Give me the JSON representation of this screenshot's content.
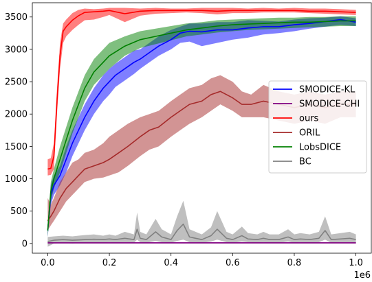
{
  "chart_data": {
    "type": "line",
    "title": "",
    "xlabel": "",
    "ylabel": "",
    "x_multiplier_label": "1e6",
    "xlim": [
      -0.05,
      1.05
    ],
    "ylim": [
      -150,
      3720
    ],
    "xticks": [
      0.0,
      0.2,
      0.4,
      0.6,
      0.8,
      1.0
    ],
    "xtick_labels": [
      "0.0",
      "0.2",
      "0.4",
      "0.6",
      "0.8",
      "1.0"
    ],
    "yticks": [
      0,
      500,
      1000,
      1500,
      2000,
      2500,
      3000,
      3500
    ],
    "ytick_labels": [
      "0",
      "500",
      "1000",
      "1500",
      "2000",
      "2500",
      "3000",
      "3500"
    ],
    "grid": false,
    "legend_position": "center-right",
    "series": [
      {
        "name": "SMODICE-KL",
        "color": "#0000ff",
        "x": [
          0.0,
          0.01,
          0.02,
          0.04,
          0.06,
          0.08,
          0.1,
          0.12,
          0.15,
          0.18,
          0.2,
          0.22,
          0.25,
          0.28,
          0.3,
          0.33,
          0.36,
          0.4,
          0.43,
          0.46,
          0.5,
          0.55,
          0.6,
          0.65,
          0.7,
          0.75,
          0.8,
          0.85,
          0.9,
          0.95,
          1.0
        ],
        "y": [
          200,
          750,
          900,
          1050,
          1300,
          1550,
          1750,
          1950,
          2200,
          2400,
          2500,
          2600,
          2700,
          2800,
          2850,
          2950,
          3050,
          3150,
          3250,
          3280,
          3270,
          3300,
          3300,
          3330,
          3350,
          3350,
          3380,
          3400,
          3430,
          3460,
          3420
        ],
        "lower": [
          100,
          600,
          750,
          900,
          1100,
          1350,
          1550,
          1750,
          2000,
          2200,
          2300,
          2420,
          2520,
          2620,
          2700,
          2800,
          2900,
          3000,
          3100,
          3120,
          3050,
          3100,
          3150,
          3180,
          3230,
          3250,
          3280,
          3320,
          3350,
          3380,
          3360
        ],
        "upper": [
          300,
          900,
          1050,
          1200,
          1500,
          1750,
          1950,
          2150,
          2400,
          2600,
          2700,
          2780,
          2880,
          2980,
          3000,
          3100,
          3200,
          3300,
          3350,
          3400,
          3400,
          3420,
          3420,
          3450,
          3440,
          3430,
          3460,
          3480,
          3490,
          3510,
          3480
        ]
      },
      {
        "name": "SMODICE-CHI",
        "color": "#800080",
        "x": [
          0.0,
          0.2,
          0.4,
          0.6,
          0.8,
          1.0
        ],
        "y": [
          10,
          10,
          10,
          10,
          10,
          10
        ],
        "lower": [
          0,
          0,
          0,
          0,
          0,
          0
        ],
        "upper": [
          20,
          20,
          20,
          20,
          20,
          20
        ]
      },
      {
        "name": "ours",
        "color": "#ff0000",
        "x": [
          0.0,
          0.01,
          0.02,
          0.03,
          0.04,
          0.05,
          0.06,
          0.08,
          0.1,
          0.12,
          0.15,
          0.18,
          0.2,
          0.25,
          0.3,
          0.35,
          0.4,
          0.45,
          0.5,
          0.55,
          0.6,
          0.65,
          0.7,
          0.75,
          0.8,
          0.85,
          0.9,
          0.95,
          1.0
        ],
        "y": [
          1150,
          1160,
          1350,
          2200,
          2900,
          3280,
          3350,
          3450,
          3520,
          3570,
          3580,
          3590,
          3600,
          3550,
          3590,
          3600,
          3600,
          3600,
          3600,
          3590,
          3600,
          3600,
          3600,
          3600,
          3600,
          3590,
          3590,
          3580,
          3570
        ],
        "lower": [
          1050,
          1060,
          1150,
          2000,
          2700,
          3100,
          3200,
          3300,
          3380,
          3450,
          3460,
          3500,
          3530,
          3420,
          3520,
          3550,
          3560,
          3570,
          3560,
          3540,
          3560,
          3560,
          3570,
          3570,
          3570,
          3560,
          3550,
          3540,
          3530
        ],
        "upper": [
          1300,
          1320,
          1550,
          2400,
          3100,
          3400,
          3460,
          3560,
          3610,
          3630,
          3620,
          3630,
          3640,
          3640,
          3630,
          3640,
          3630,
          3630,
          3640,
          3640,
          3640,
          3630,
          3640,
          3630,
          3640,
          3630,
          3630,
          3620,
          3610
        ]
      },
      {
        "name": "ORIL",
        "color": "#a52a2a",
        "x": [
          0.0,
          0.01,
          0.02,
          0.04,
          0.06,
          0.08,
          0.1,
          0.12,
          0.15,
          0.18,
          0.2,
          0.23,
          0.26,
          0.3,
          0.33,
          0.36,
          0.4,
          0.43,
          0.46,
          0.5,
          0.53,
          0.56,
          0.6,
          0.63,
          0.66,
          0.7,
          0.75,
          0.8,
          0.85,
          0.9,
          0.95,
          1.0
        ],
        "y": [
          350,
          420,
          500,
          700,
          850,
          950,
          1050,
          1150,
          1200,
          1250,
          1300,
          1400,
          1500,
          1650,
          1750,
          1800,
          1950,
          2050,
          2150,
          2200,
          2300,
          2350,
          2250,
          2150,
          2150,
          2200,
          2150,
          2100,
          2150,
          2100,
          2150,
          2150
        ],
        "lower": [
          200,
          280,
          350,
          500,
          650,
          750,
          850,
          950,
          1000,
          1020,
          1050,
          1100,
          1200,
          1350,
          1450,
          1500,
          1650,
          1750,
          1850,
          1950,
          2050,
          2150,
          2050,
          1950,
          1950,
          1950,
          1900,
          1850,
          1900,
          1850,
          1950,
          1950
        ],
        "upper": [
          700,
          600,
          700,
          950,
          1100,
          1250,
          1300,
          1400,
          1450,
          1550,
          1650,
          1750,
          1850,
          1950,
          2000,
          2050,
          2200,
          2300,
          2400,
          2450,
          2550,
          2600,
          2500,
          2350,
          2300,
          2450,
          2350,
          2300,
          2350,
          2300,
          2350,
          2350
        ]
      },
      {
        "name": "LobsDICE",
        "color": "#008000",
        "x": [
          0.0,
          0.01,
          0.02,
          0.04,
          0.06,
          0.08,
          0.1,
          0.12,
          0.15,
          0.18,
          0.2,
          0.25,
          0.3,
          0.35,
          0.4,
          0.45,
          0.5,
          0.55,
          0.6,
          0.65,
          0.7,
          0.75,
          0.8,
          0.85,
          0.9,
          0.95,
          1.0
        ],
        "y": [
          200,
          800,
          1000,
          1300,
          1600,
          1900,
          2150,
          2400,
          2650,
          2800,
          2900,
          3050,
          3150,
          3200,
          3250,
          3300,
          3330,
          3360,
          3380,
          3390,
          3400,
          3410,
          3420,
          3420,
          3430,
          3440,
          3440
        ],
        "lower": [
          100,
          650,
          850,
          1100,
          1400,
          1700,
          1950,
          2200,
          2450,
          2600,
          2700,
          2900,
          3020,
          3080,
          3140,
          3200,
          3230,
          3260,
          3280,
          3300,
          3310,
          3320,
          3330,
          3340,
          3350,
          3360,
          3360
        ],
        "upper": [
          300,
          950,
          1150,
          1500,
          1800,
          2100,
          2350,
          2600,
          2850,
          3000,
          3100,
          3200,
          3280,
          3320,
          3360,
          3400,
          3420,
          3450,
          3460,
          3470,
          3480,
          3490,
          3490,
          3500,
          3500,
          3510,
          3510
        ]
      },
      {
        "name": "BC",
        "color": "#808080",
        "x": [
          0.0,
          0.02,
          0.05,
          0.08,
          0.1,
          0.12,
          0.15,
          0.18,
          0.2,
          0.22,
          0.25,
          0.28,
          0.29,
          0.3,
          0.32,
          0.35,
          0.37,
          0.4,
          0.42,
          0.44,
          0.46,
          0.48,
          0.5,
          0.53,
          0.55,
          0.58,
          0.6,
          0.63,
          0.65,
          0.68,
          0.7,
          0.72,
          0.75,
          0.78,
          0.8,
          0.82,
          0.85,
          0.88,
          0.9,
          0.92,
          0.95,
          0.98,
          1.0
        ],
        "y": [
          30,
          50,
          60,
          50,
          55,
          60,
          65,
          60,
          70,
          60,
          80,
          60,
          220,
          80,
          60,
          180,
          100,
          60,
          200,
          300,
          100,
          80,
          60,
          120,
          220,
          80,
          60,
          120,
          70,
          60,
          80,
          60,
          60,
          100,
          60,
          70,
          60,
          80,
          200,
          60,
          70,
          80,
          60
        ],
        "lower": [
          -50,
          0,
          10,
          0,
          10,
          10,
          15,
          10,
          20,
          10,
          20,
          10,
          60,
          20,
          10,
          40,
          20,
          10,
          40,
          60,
          20,
          20,
          10,
          30,
          60,
          20,
          10,
          30,
          20,
          10,
          20,
          10,
          10,
          30,
          10,
          20,
          10,
          20,
          60,
          10,
          20,
          20,
          10
        ],
        "upper": [
          100,
          110,
          120,
          110,
          120,
          130,
          140,
          120,
          140,
          120,
          180,
          140,
          480,
          180,
          140,
          380,
          220,
          140,
          420,
          660,
          220,
          180,
          140,
          250,
          500,
          180,
          140,
          260,
          160,
          140,
          180,
          140,
          140,
          220,
          140,
          160,
          140,
          180,
          420,
          140,
          160,
          180,
          140
        ]
      }
    ]
  }
}
